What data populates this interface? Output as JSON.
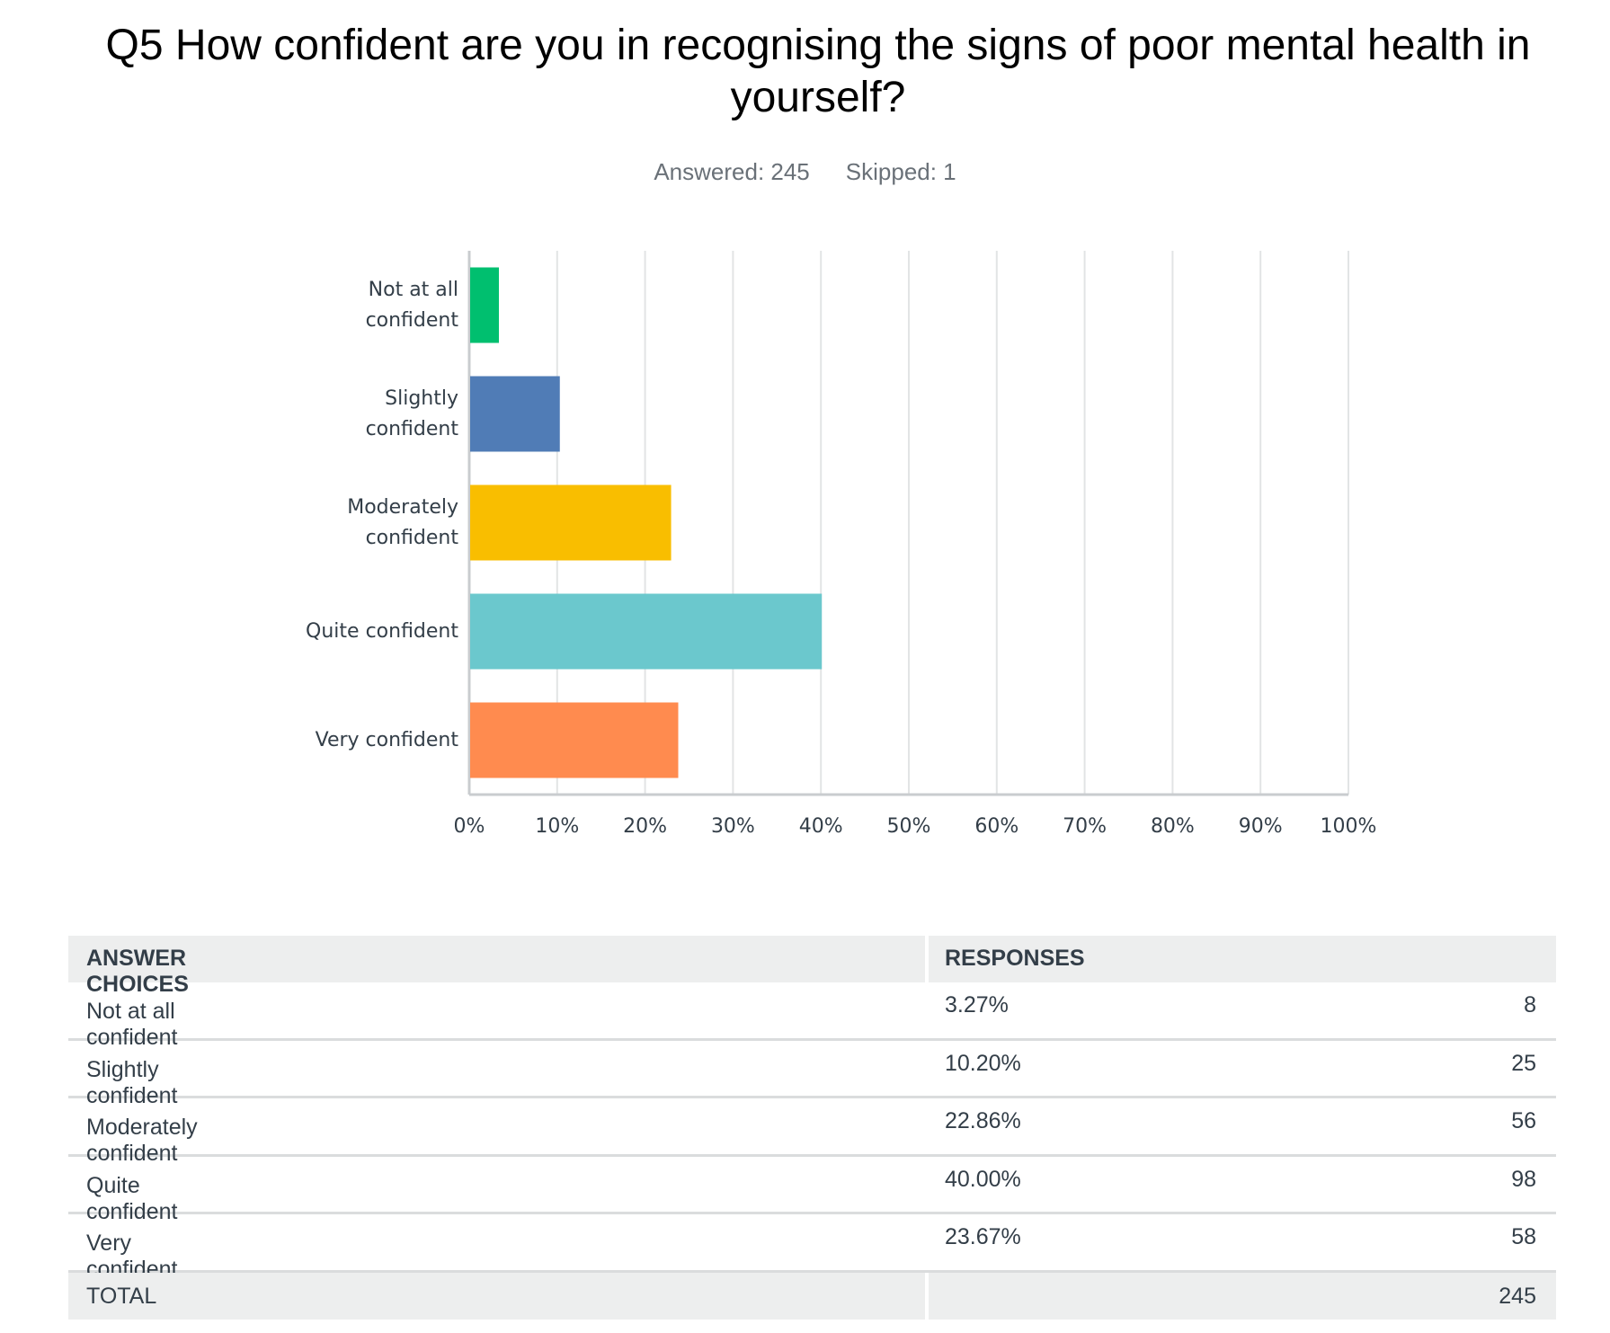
{
  "chart_data": {
    "type": "bar",
    "orientation": "horizontal",
    "title": "Q5 How confident are you in recognising the signs of poor mental health in yourself?",
    "subtitle": [
      "Answered: 245",
      "Skipped: 1"
    ],
    "categories": [
      "Not at all confident",
      "Slightly confident",
      "Moderately confident",
      "Quite confident",
      "Very confident"
    ],
    "values": [
      3.27,
      10.2,
      22.86,
      40,
      23.67
    ],
    "colors": [
      "#00bf6f",
      "#507cb6",
      "#f9be00",
      "#6bc8cd",
      "#ff8b4f"
    ],
    "xlim": [
      0,
      100
    ],
    "xticks": [
      {
        "value": 0,
        "label": "0%"
      },
      {
        "value": 10,
        "label": "10%"
      },
      {
        "value": 20,
        "label": "20%"
      },
      {
        "value": 30,
        "label": "30%"
      },
      {
        "value": 40,
        "label": "40%"
      },
      {
        "value": 50,
        "label": "50%"
      },
      {
        "value": 60,
        "label": "60%"
      },
      {
        "value": 70,
        "label": "70%"
      },
      {
        "value": 80,
        "label": "80%"
      },
      {
        "value": 90,
        "label": "90%"
      },
      {
        "value": 100,
        "label": "100%"
      }
    ],
    "grid": true
  },
  "table": {
    "headers": [
      "ANSWER CHOICES",
      "RESPONSES"
    ],
    "rows": [
      [
        "Not at all confident",
        "3.27%",
        "8"
      ],
      [
        "Slightly confident",
        "10.20%",
        "25"
      ],
      [
        "Moderately confident",
        "22.86%",
        "56"
      ],
      [
        "Quite confident",
        "40.00%",
        "98"
      ],
      [
        "Very confident",
        "23.67%",
        "58"
      ]
    ],
    "total": [
      "TOTAL",
      "245"
    ]
  }
}
